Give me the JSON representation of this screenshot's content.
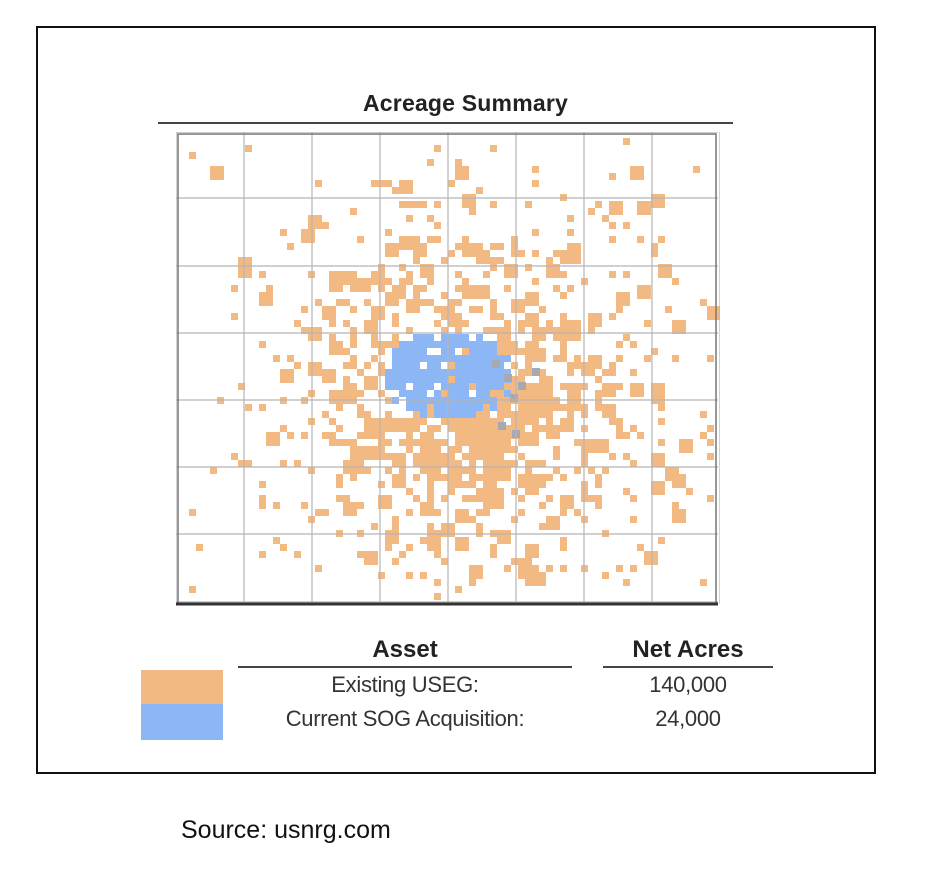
{
  "map": {
    "title": "Acreage Summary"
  },
  "legend": {
    "headers": {
      "asset": "Asset",
      "net_acres": "Net Acres"
    },
    "rows": [
      {
        "asset": "Existing USEG:",
        "net_acres": "140,000",
        "color": "#f3b982"
      },
      {
        "asset": "Current SOG Acquisition:",
        "net_acres": "24,000",
        "color": "#8db6f5"
      }
    ]
  },
  "source": "Source: usnrg.com"
}
